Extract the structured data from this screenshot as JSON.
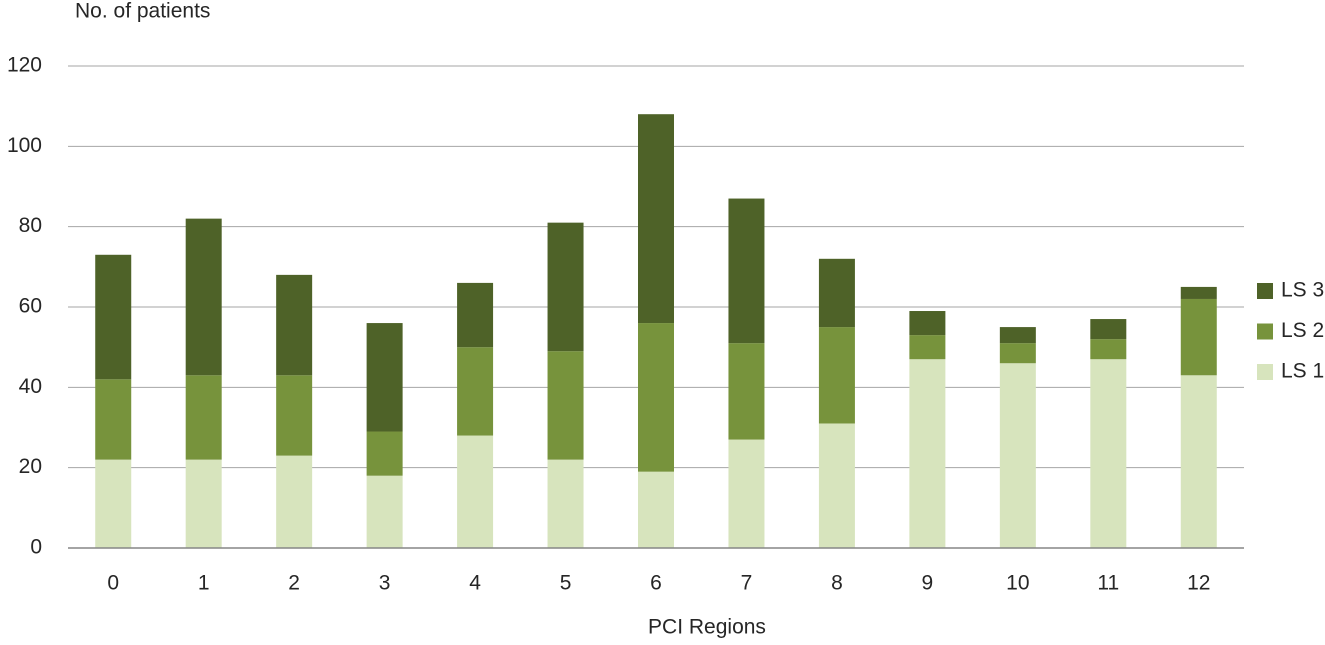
{
  "chart_data": {
    "type": "stacked_bar",
    "y_label": "No. of patients",
    "x_label": "PCI Regions",
    "categories": [
      "0",
      "1",
      "2",
      "3",
      "4",
      "5",
      "6",
      "7",
      "8",
      "9",
      "10",
      "11",
      "12"
    ],
    "series": [
      {
        "name": "LS 1",
        "color": "#d7e4bd",
        "values": [
          22,
          22,
          23,
          18,
          28,
          22,
          19,
          27,
          31,
          47,
          46,
          47,
          43
        ]
      },
      {
        "name": "LS 2",
        "color": "#77933c",
        "values": [
          20,
          21,
          20,
          11,
          22,
          27,
          37,
          24,
          24,
          6,
          5,
          5,
          19
        ]
      },
      {
        "name": "LS 3",
        "color": "#4e6228",
        "values": [
          31,
          39,
          25,
          27,
          16,
          32,
          52,
          36,
          17,
          6,
          4,
          5,
          3
        ]
      }
    ],
    "ylim": [
      0,
      120
    ],
    "yticks": [
      0,
      20,
      40,
      60,
      80,
      100,
      120
    ],
    "grid": true,
    "legend": "right"
  }
}
